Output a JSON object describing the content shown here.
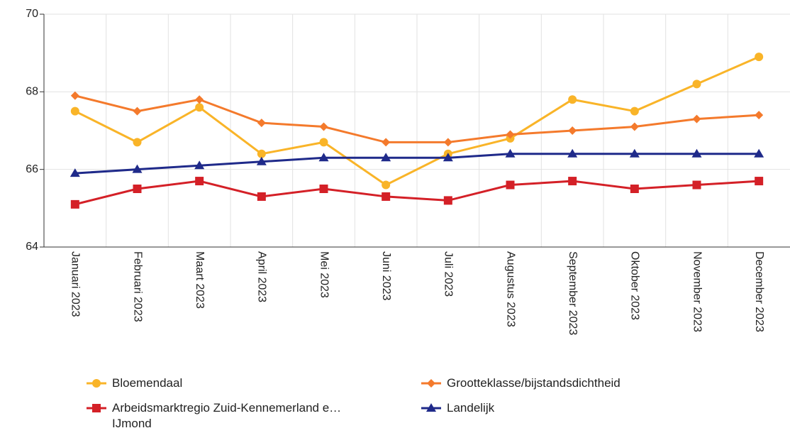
{
  "chart_data": {
    "type": "line",
    "categories": [
      "Januari 2023",
      "Februari 2023",
      "Maart 2023",
      "April 2023",
      "Mei 2023",
      "Juni 2023",
      "Juli 2023",
      "Augustus 2023",
      "September 2023",
      "Oktober 2023",
      "November 2023",
      "December 2023"
    ],
    "ylim": [
      64,
      70
    ],
    "yticks": [
      64,
      66,
      68,
      70
    ],
    "grid": true,
    "series": [
      {
        "name": "Bloemendaal",
        "color": "#f9b428",
        "marker": "circle",
        "values": [
          67.5,
          66.7,
          67.6,
          66.4,
          66.7,
          65.6,
          66.4,
          66.8,
          67.8,
          67.5,
          68.2,
          68.9
        ]
      },
      {
        "name": "Grootteklasse/bijstandsdichtheid",
        "color": "#f47a2c",
        "marker": "diamond",
        "values": [
          67.9,
          67.5,
          67.8,
          67.2,
          67.1,
          66.7,
          66.7,
          66.9,
          67.0,
          67.1,
          67.3,
          67.4
        ]
      },
      {
        "name": "Arbeidsmarktregio Zuid-Kennemerland e… IJmond",
        "color": "#d42027",
        "marker": "square",
        "values": [
          65.1,
          65.5,
          65.7,
          65.3,
          65.5,
          65.3,
          65.2,
          65.6,
          65.7,
          65.5,
          65.6,
          65.7
        ]
      },
      {
        "name": "Landelijk",
        "color": "#1f2a8a",
        "marker": "triangle",
        "values": [
          65.9,
          66.0,
          66.1,
          66.2,
          66.3,
          66.3,
          66.3,
          66.4,
          66.4,
          66.4,
          66.4,
          66.4
        ]
      }
    ]
  }
}
